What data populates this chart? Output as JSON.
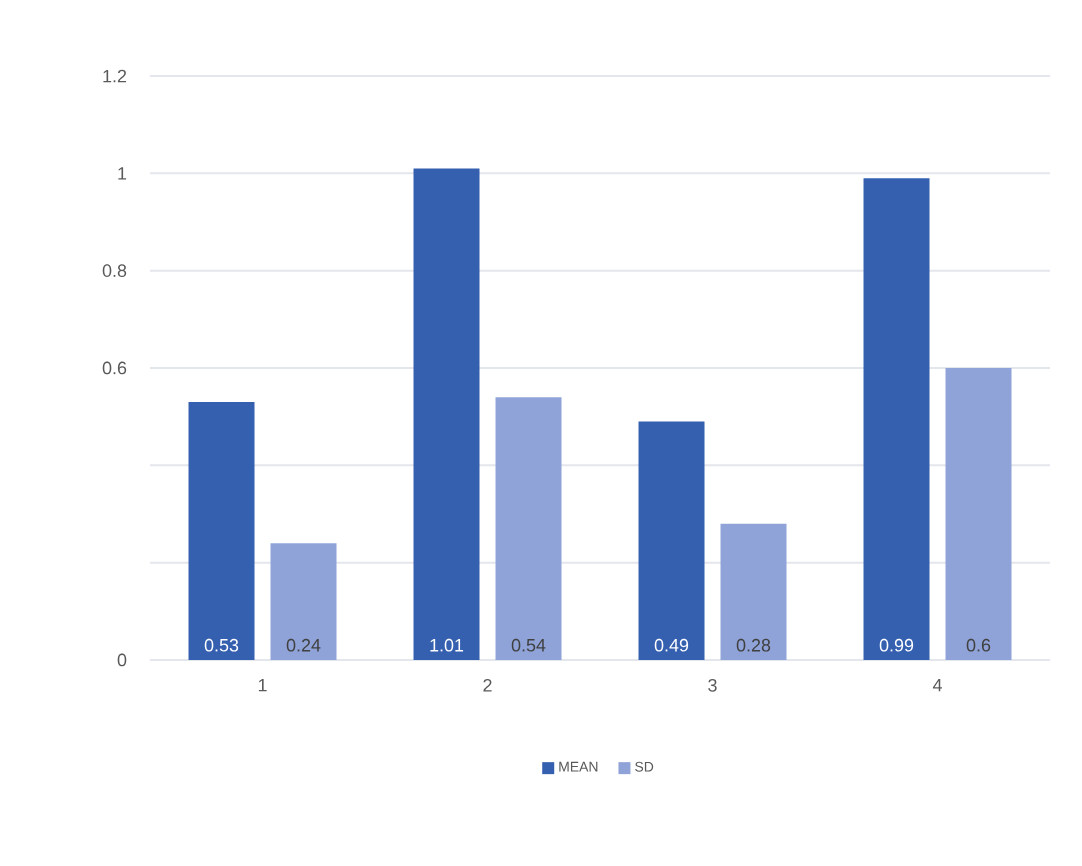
{
  "chart_data": {
    "type": "bar",
    "categories": [
      "1",
      "2",
      "3",
      "4"
    ],
    "series": [
      {
        "name": "MEAN",
        "color": "#3560b0",
        "values": [
          0.53,
          1.01,
          0.49,
          0.99
        ]
      },
      {
        "name": "SD",
        "color": "#8fa3d8",
        "values": [
          0.24,
          0.54,
          0.28,
          0.6
        ]
      }
    ],
    "ylim": [
      0,
      1.2
    ],
    "yticks": [
      0,
      {
        "value": 0.2,
        "label": null
      },
      {
        "value": 0.4,
        "label": null
      },
      0.6,
      0.8,
      1,
      1.2
    ],
    "grid": "y",
    "legend": "bottom",
    "data_labels": true
  }
}
